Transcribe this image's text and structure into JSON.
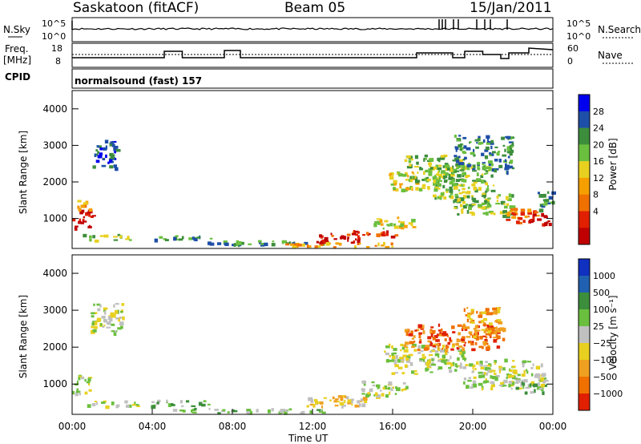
{
  "header": {
    "station": "Saskatoon (fitACF)",
    "beam": "Beam 05",
    "date": "15/Jan/2011"
  },
  "strip": {
    "nsky_label": "N.Sky",
    "nsky_ticks": [
      "10^5",
      "10^0"
    ],
    "nsearch_label": "N.Search",
    "nsearch_ticks": [
      "10^5",
      "10^0"
    ],
    "freq_label_1": "Freq.",
    "freq_label_2": "[MHz]",
    "freq_ticks": [
      "18",
      "8"
    ],
    "nave_label": "Nave",
    "nave_ticks": [
      "60",
      "0"
    ],
    "cpid_label": "CPID",
    "cpid_value": "normalsound (fast) 157"
  },
  "chart_data": [
    {
      "type": "heatmap",
      "name": "power",
      "ylabel": "Slant Range [km]",
      "yticks": [
        "4000",
        "3000",
        "2000",
        "1000"
      ],
      "ylim": [
        180,
        4500
      ],
      "colorbar_label": "Power [dB]",
      "colorbar_ticks": [
        "28",
        "24",
        "20",
        "16",
        "12",
        "8",
        "4"
      ],
      "colors": [
        "#0000ee",
        "#1e4fa8",
        "#3c8e3c",
        "#6bbf3e",
        "#e8d020",
        "#f5a000",
        "#f07000",
        "#e02000",
        "#c00000"
      ],
      "blobs": [
        {
          "t": 0.5,
          "r": 1000,
          "dt": 0.5,
          "dr": 250,
          "level": 8
        },
        {
          "t": 0.6,
          "r": 1400,
          "dt": 0.4,
          "dr": 150,
          "level": 5
        },
        {
          "t": 1.7,
          "r": 500,
          "dt": 1.2,
          "dr": 80,
          "level": 3
        },
        {
          "t": 1.6,
          "r": 2800,
          "dt": 0.6,
          "dr": 400,
          "level": 1
        },
        {
          "t": 5.5,
          "r": 500,
          "dt": 1.5,
          "dr": 70,
          "level": 2
        },
        {
          "t": 9.5,
          "r": 350,
          "dt": 3.0,
          "dr": 60,
          "level": 2
        },
        {
          "t": 13.3,
          "r": 470,
          "dt": 1.2,
          "dr": 120,
          "level": 8
        },
        {
          "t": 14.5,
          "r": 620,
          "dt": 1.6,
          "dr": 90,
          "level": 7
        },
        {
          "t": 13.0,
          "r": 300,
          "dt": 3.0,
          "dr": 60,
          "level": 5
        },
        {
          "t": 16.0,
          "r": 900,
          "dt": 1.0,
          "dr": 160,
          "level": 4
        },
        {
          "t": 16.8,
          "r": 2050,
          "dt": 1.0,
          "dr": 250,
          "level": 4
        },
        {
          "t": 18.0,
          "r": 2400,
          "dt": 1.5,
          "dr": 350,
          "level": 3
        },
        {
          "t": 19.5,
          "r": 2000,
          "dt": 1.5,
          "dr": 500,
          "level": 3
        },
        {
          "t": 20.5,
          "r": 2800,
          "dt": 1.5,
          "dr": 500,
          "level": 2
        },
        {
          "t": 20.5,
          "r": 1400,
          "dt": 1.5,
          "dr": 300,
          "level": 3
        },
        {
          "t": 22.4,
          "r": 1100,
          "dt": 0.8,
          "dr": 200,
          "level": 6
        },
        {
          "t": 23.2,
          "r": 1000,
          "dt": 0.6,
          "dr": 150,
          "level": 8
        },
        {
          "t": 23.6,
          "r": 1500,
          "dt": 0.4,
          "dr": 250,
          "level": 2
        }
      ]
    },
    {
      "type": "heatmap",
      "name": "velocity",
      "ylabel": "Slant Range [km]",
      "yticks": [
        "4000",
        "3000",
        "2000",
        "1000"
      ],
      "ylim": [
        180,
        4500
      ],
      "colorbar_label": "Velocity [m s⁻¹]",
      "colorbar_ticks": [
        "1000",
        "500",
        "100",
        "25",
        "−25",
        "−100",
        "−500",
        "−1000"
      ],
      "colors": [
        "#1030c0",
        "#2060b0",
        "#3c8e3c",
        "#6bbf3e",
        "#c0c0c0",
        "#e8d020",
        "#f0a020",
        "#f07000",
        "#e02000"
      ],
      "blobs": [
        {
          "t": 0.5,
          "r": 1000,
          "dt": 0.5,
          "dr": 250,
          "level": 4
        },
        {
          "t": 1.7,
          "r": 2800,
          "dt": 0.8,
          "dr": 400,
          "level": 4
        },
        {
          "t": 2.0,
          "r": 480,
          "dt": 1.3,
          "dr": 80,
          "level": 4
        },
        {
          "t": 5.3,
          "r": 500,
          "dt": 1.5,
          "dr": 80,
          "level": 3
        },
        {
          "t": 9.0,
          "r": 300,
          "dt": 4.0,
          "dr": 60,
          "level": 3
        },
        {
          "t": 13.5,
          "r": 550,
          "dt": 1.8,
          "dr": 150,
          "level": 5
        },
        {
          "t": 15.5,
          "r": 900,
          "dt": 1.2,
          "dr": 200,
          "level": 4
        },
        {
          "t": 17.5,
          "r": 1700,
          "dt": 2.0,
          "dr": 400,
          "level": 4
        },
        {
          "t": 19.0,
          "r": 2300,
          "dt": 2.5,
          "dr": 350,
          "level": 7
        },
        {
          "t": 20.5,
          "r": 2700,
          "dt": 1.0,
          "dr": 400,
          "level": 6
        },
        {
          "t": 21.5,
          "r": 1300,
          "dt": 2.0,
          "dr": 400,
          "level": 4
        },
        {
          "t": 22.8,
          "r": 1000,
          "dt": 0.8,
          "dr": 200,
          "level": 3
        }
      ]
    }
  ],
  "xaxis": {
    "label": "Time UT",
    "ticks": [
      "00:00",
      "04:00",
      "08:00",
      "12:00",
      "16:00",
      "20:00",
      "00:00"
    ]
  }
}
